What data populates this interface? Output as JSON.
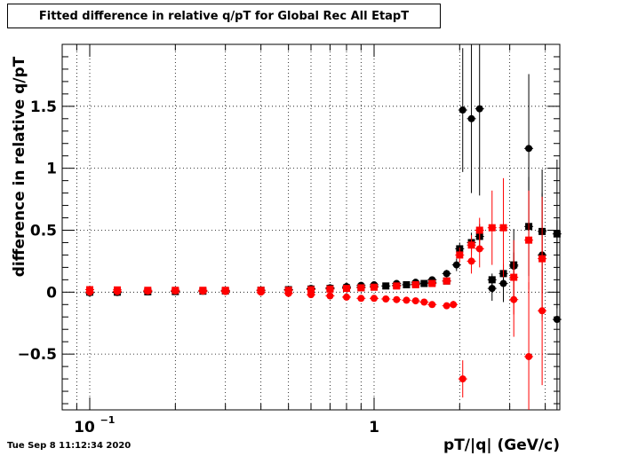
{
  "chart_data": {
    "type": "scatter",
    "title": "Fitted difference in relative q/pT  for Global Rec All EtapT",
    "xlabel": "pT/|q| (GeV/c)",
    "ylabel": "difference in relative q/pT",
    "x_scale": "log",
    "xlim": [
      0.08,
      4.5
    ],
    "ylim": [
      -0.95,
      2.0
    ],
    "x_tick_labels": [
      {
        "v": 0.1,
        "t": "10"
      },
      {
        "v": 1,
        "t": "1"
      }
    ],
    "x_tick_sup": "−1",
    "y_ticks": [
      {
        "v": -0.5,
        "t": "−0.5"
      },
      {
        "v": 0,
        "t": "0"
      },
      {
        "v": 0.5,
        "t": "0.5"
      },
      {
        "v": 1,
        "t": "1"
      },
      {
        "v": 1.5,
        "t": "1.5"
      }
    ],
    "grid": true,
    "series": [
      {
        "color": "#000000",
        "marker": "square",
        "points": [
          [
            0.1,
            0.0,
            0.01
          ],
          [
            0.125,
            0.0,
            0.01
          ],
          [
            0.16,
            0.003,
            0.008
          ],
          [
            0.2,
            0.005,
            0.006
          ],
          [
            0.25,
            0.008,
            0.004
          ],
          [
            0.3,
            0.01,
            0.004
          ],
          [
            0.4,
            0.015,
            0.004
          ],
          [
            0.5,
            0.02,
            0.004
          ],
          [
            0.6,
            0.025,
            0.004
          ],
          [
            0.7,
            0.03,
            0.004
          ],
          [
            0.8,
            0.035,
            0.004
          ],
          [
            0.9,
            0.04,
            0.005
          ],
          [
            1.0,
            0.045,
            0.006
          ],
          [
            1.1,
            0.05,
            0.006
          ],
          [
            1.2,
            0.055,
            0.007
          ],
          [
            1.3,
            0.06,
            0.008
          ],
          [
            1.4,
            0.065,
            0.009
          ],
          [
            1.5,
            0.07,
            0.01
          ],
          [
            1.6,
            0.08,
            0.012
          ],
          [
            1.8,
            0.09,
            0.015
          ],
          [
            2.0,
            0.35,
            0.05
          ],
          [
            2.2,
            0.4,
            0.08
          ],
          [
            2.35,
            0.45,
            0.1
          ],
          [
            2.6,
            0.1,
            0.05
          ],
          [
            2.85,
            0.15,
            0.08
          ],
          [
            3.1,
            0.22,
            0.1
          ],
          [
            3.5,
            0.53,
            0.4
          ],
          [
            3.9,
            0.49,
            0.5
          ],
          [
            4.4,
            0.47,
            0.6
          ]
        ]
      },
      {
        "color": "#000000",
        "marker": "circle",
        "points": [
          [
            0.1,
            -0.005,
            0.01
          ],
          [
            0.125,
            -0.003,
            0.01
          ],
          [
            0.16,
            0.002,
            0.008
          ],
          [
            0.2,
            0.005,
            0.006
          ],
          [
            0.25,
            0.008,
            0.005
          ],
          [
            0.3,
            0.01,
            0.005
          ],
          [
            0.4,
            0.015,
            0.005
          ],
          [
            0.5,
            0.02,
            0.005
          ],
          [
            0.6,
            0.03,
            0.005
          ],
          [
            0.7,
            0.035,
            0.005
          ],
          [
            0.8,
            0.045,
            0.006
          ],
          [
            0.9,
            0.055,
            0.007
          ],
          [
            1.0,
            0.06,
            0.008
          ],
          [
            1.2,
            0.07,
            0.01
          ],
          [
            1.4,
            0.08,
            0.012
          ],
          [
            1.6,
            0.1,
            0.015
          ],
          [
            1.8,
            0.15,
            0.03
          ],
          [
            1.95,
            0.22,
            0.05
          ],
          [
            2.05,
            1.47,
            0.5
          ],
          [
            2.2,
            1.4,
            0.6
          ],
          [
            2.35,
            1.48,
            0.7
          ],
          [
            2.6,
            0.03,
            0.1
          ],
          [
            2.85,
            0.07,
            0.15
          ],
          [
            3.1,
            0.21,
            0.3
          ],
          [
            3.5,
            1.16,
            0.6
          ],
          [
            3.9,
            0.3,
            0.5
          ],
          [
            4.4,
            -0.22,
            0.8
          ]
        ]
      },
      {
        "color": "#ff0000",
        "marker": "square",
        "points": [
          [
            0.1,
            0.02,
            0.01
          ],
          [
            0.125,
            0.018,
            0.01
          ],
          [
            0.16,
            0.015,
            0.008
          ],
          [
            0.2,
            0.015,
            0.006
          ],
          [
            0.25,
            0.015,
            0.005
          ],
          [
            0.3,
            0.015,
            0.005
          ],
          [
            0.4,
            0.015,
            0.005
          ],
          [
            0.5,
            0.015,
            0.005
          ],
          [
            0.6,
            0.02,
            0.005
          ],
          [
            0.7,
            0.025,
            0.005
          ],
          [
            0.8,
            0.03,
            0.006
          ],
          [
            0.9,
            0.035,
            0.007
          ],
          [
            1.0,
            0.04,
            0.008
          ],
          [
            1.2,
            0.05,
            0.01
          ],
          [
            1.4,
            0.06,
            0.012
          ],
          [
            1.6,
            0.07,
            0.015
          ],
          [
            1.8,
            0.09,
            0.02
          ],
          [
            2.0,
            0.3,
            0.06
          ],
          [
            2.2,
            0.38,
            0.08
          ],
          [
            2.35,
            0.5,
            0.1
          ],
          [
            2.6,
            0.52,
            0.3
          ],
          [
            2.85,
            0.52,
            0.4
          ],
          [
            3.1,
            0.12,
            0.3
          ],
          [
            3.5,
            0.42,
            0.4
          ],
          [
            3.9,
            0.27,
            0.5
          ]
        ]
      },
      {
        "color": "#ff0000",
        "marker": "circle",
        "points": [
          [
            0.1,
            0.0,
            0.01
          ],
          [
            0.125,
            0.005,
            0.01
          ],
          [
            0.16,
            0.008,
            0.008
          ],
          [
            0.2,
            0.01,
            0.006
          ],
          [
            0.25,
            0.008,
            0.005
          ],
          [
            0.3,
            0.005,
            0.005
          ],
          [
            0.4,
            0.0,
            0.005
          ],
          [
            0.5,
            -0.01,
            0.005
          ],
          [
            0.6,
            -0.02,
            0.005
          ],
          [
            0.7,
            -0.03,
            0.005
          ],
          [
            0.8,
            -0.04,
            0.006
          ],
          [
            0.9,
            -0.05,
            0.007
          ],
          [
            1.0,
            -0.05,
            0.008
          ],
          [
            1.1,
            -0.055,
            0.009
          ],
          [
            1.2,
            -0.06,
            0.01
          ],
          [
            1.3,
            -0.065,
            0.011
          ],
          [
            1.4,
            -0.07,
            0.012
          ],
          [
            1.5,
            -0.08,
            0.015
          ],
          [
            1.6,
            -0.1,
            0.02
          ],
          [
            1.8,
            -0.11,
            0.025
          ],
          [
            1.9,
            -0.1,
            0.03
          ],
          [
            2.05,
            -0.7,
            0.15
          ],
          [
            2.2,
            0.25,
            0.1
          ],
          [
            2.35,
            0.35,
            0.15
          ],
          [
            3.1,
            -0.06,
            0.3
          ],
          [
            3.5,
            -0.52,
            0.6
          ],
          [
            3.9,
            -0.15,
            0.6
          ]
        ]
      }
    ]
  },
  "timestamp": "Tue Sep  8 11:12:34 2020"
}
